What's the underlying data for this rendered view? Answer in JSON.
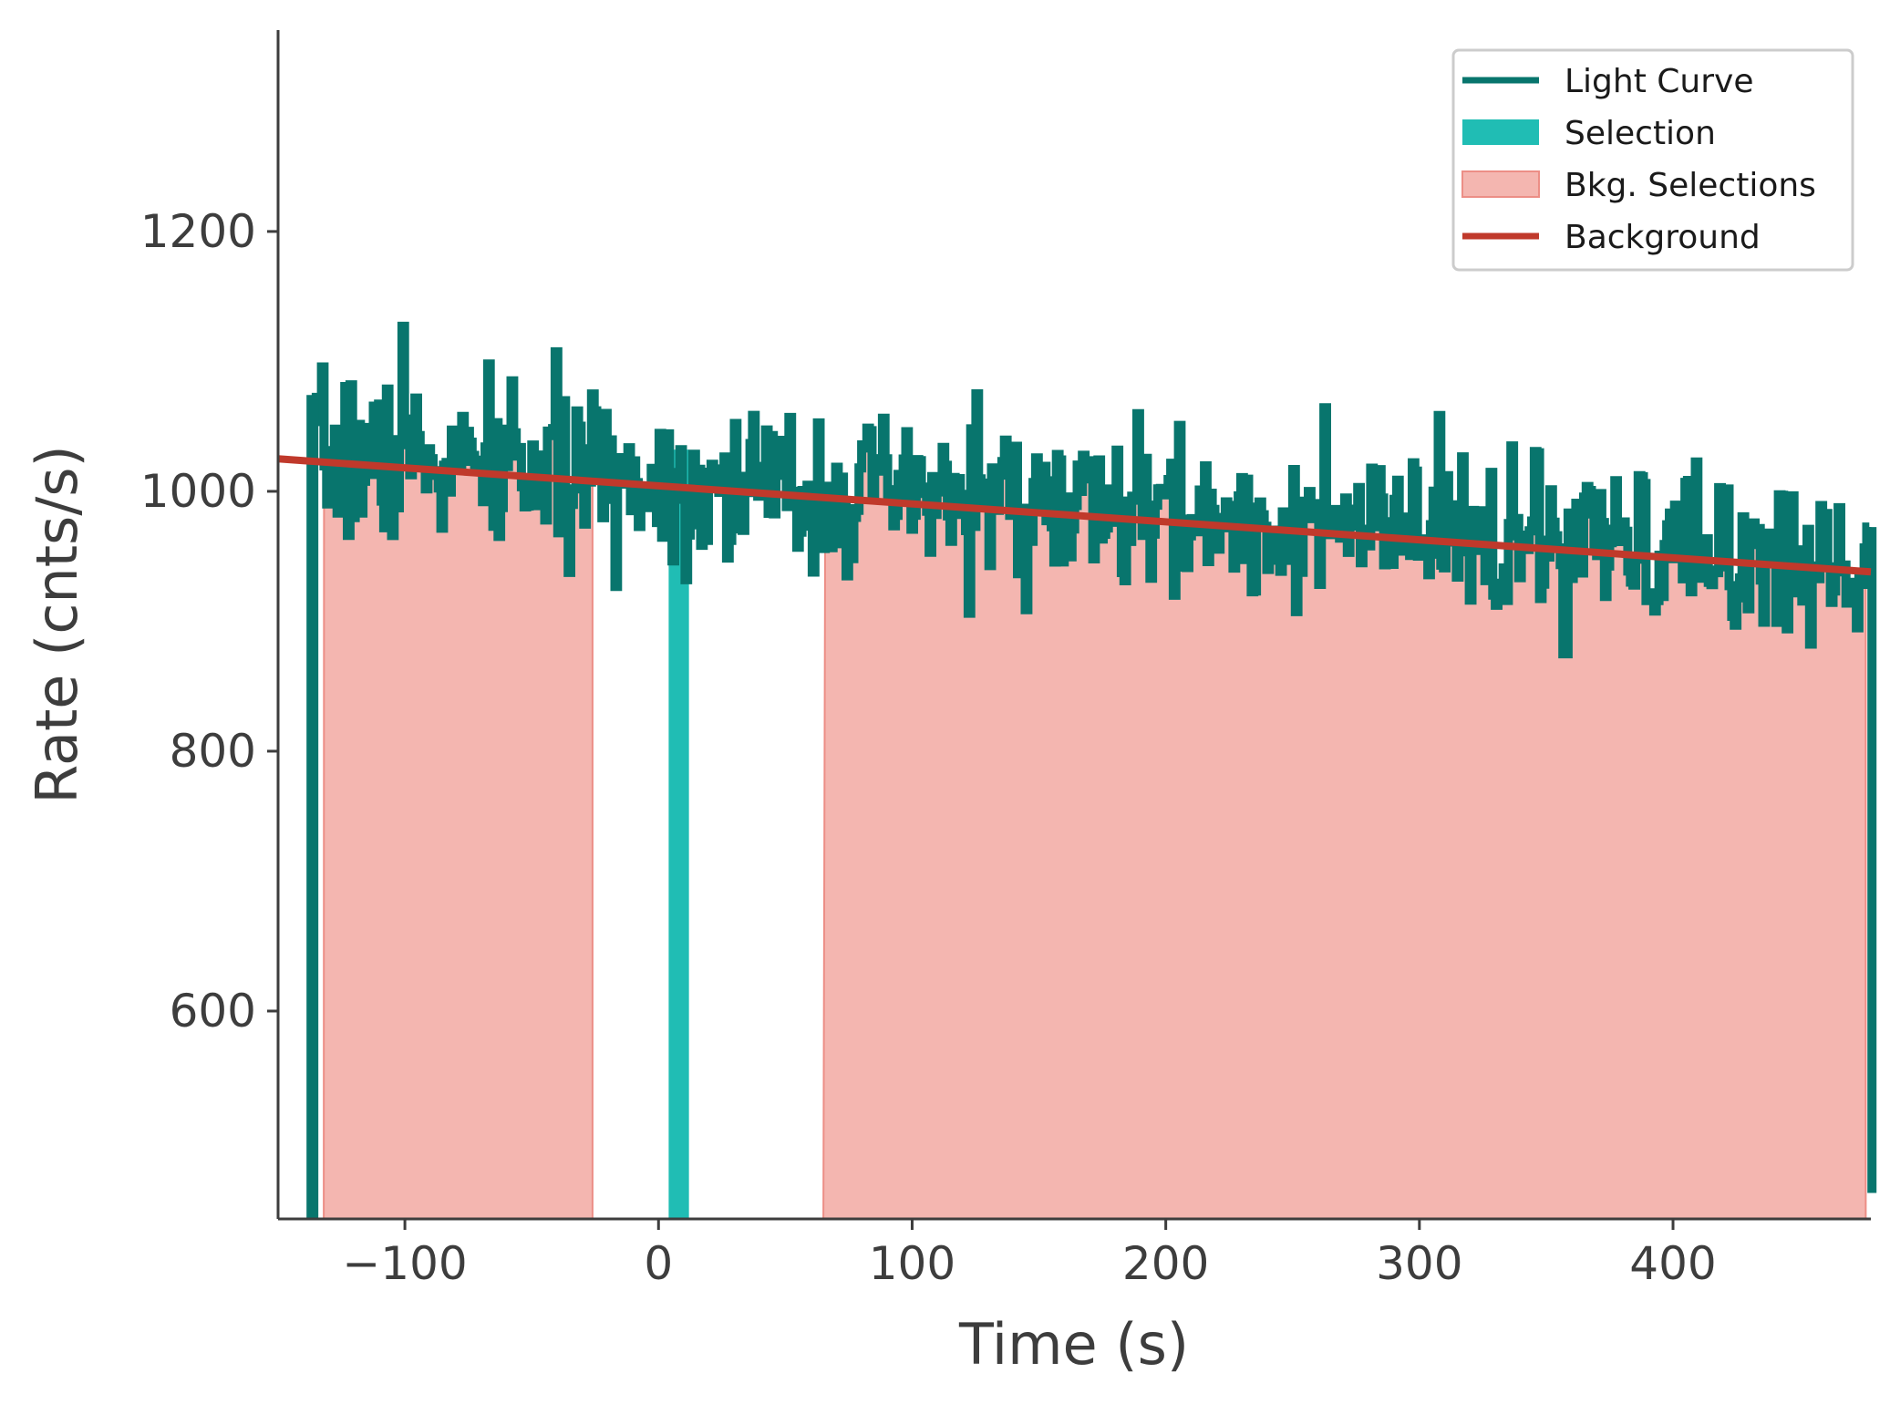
{
  "chart_data": {
    "type": "line",
    "title": "",
    "xlabel": "Time (s)",
    "ylabel": "Rate (cnts/s)",
    "xlim": [
      -150,
      478
    ],
    "ylim": [
      440,
      1355
    ],
    "xticks": [
      {
        "value": -100,
        "label": "−100"
      },
      {
        "value": 0,
        "label": "0"
      },
      {
        "value": 100,
        "label": "100"
      },
      {
        "value": 200,
        "label": "200"
      },
      {
        "value": 300,
        "label": "300"
      },
      {
        "value": 400,
        "label": "400"
      }
    ],
    "yticks": [
      {
        "value": 600,
        "label": "600"
      },
      {
        "value": 800,
        "label": "800"
      },
      {
        "value": 1000,
        "label": "1000"
      },
      {
        "value": 1200,
        "label": "1200"
      }
    ],
    "grid": false,
    "legend_position": "top-right",
    "legend": [
      {
        "key": "light_curve",
        "label": "Light Curve",
        "kind": "line"
      },
      {
        "key": "selection",
        "label": "Selection",
        "kind": "patch"
      },
      {
        "key": "bkg_selections",
        "label": "Bkg. Selections",
        "kind": "patch"
      },
      {
        "key": "background",
        "label": "Background",
        "kind": "line"
      }
    ],
    "colors": {
      "light_curve": "#08756d",
      "selection": "#20bdb4",
      "bkg_fill": "#f4b6b0",
      "bkg_edge": "#ec8e86",
      "background": "#c0392b",
      "axis": "#3d3d3d"
    },
    "light_curve": {
      "t_start": -137,
      "t_end": 477,
      "bin_width": 1.024,
      "start_rate": 440,
      "end_rate": 460,
      "noise_sigma": 30,
      "seed": 7,
      "peaks": [
        {
          "t": -101,
          "rate": 1127
        },
        {
          "t": -122,
          "rate": 1082
        },
        {
          "t": -58,
          "rate": 1085
        },
        {
          "t": 125,
          "rate": 1075
        },
        {
          "t": 357,
          "rate": 875
        },
        {
          "t": 477,
          "rate": 882
        }
      ]
    },
    "background_model": {
      "x": [
        -150,
        478
      ],
      "y": [
        1025,
        938
      ]
    },
    "background_selections": [
      {
        "start": -132,
        "end": -26
      },
      {
        "start": 65,
        "end": 476
      }
    ],
    "selection": {
      "start": 4,
      "end": 12
    }
  }
}
